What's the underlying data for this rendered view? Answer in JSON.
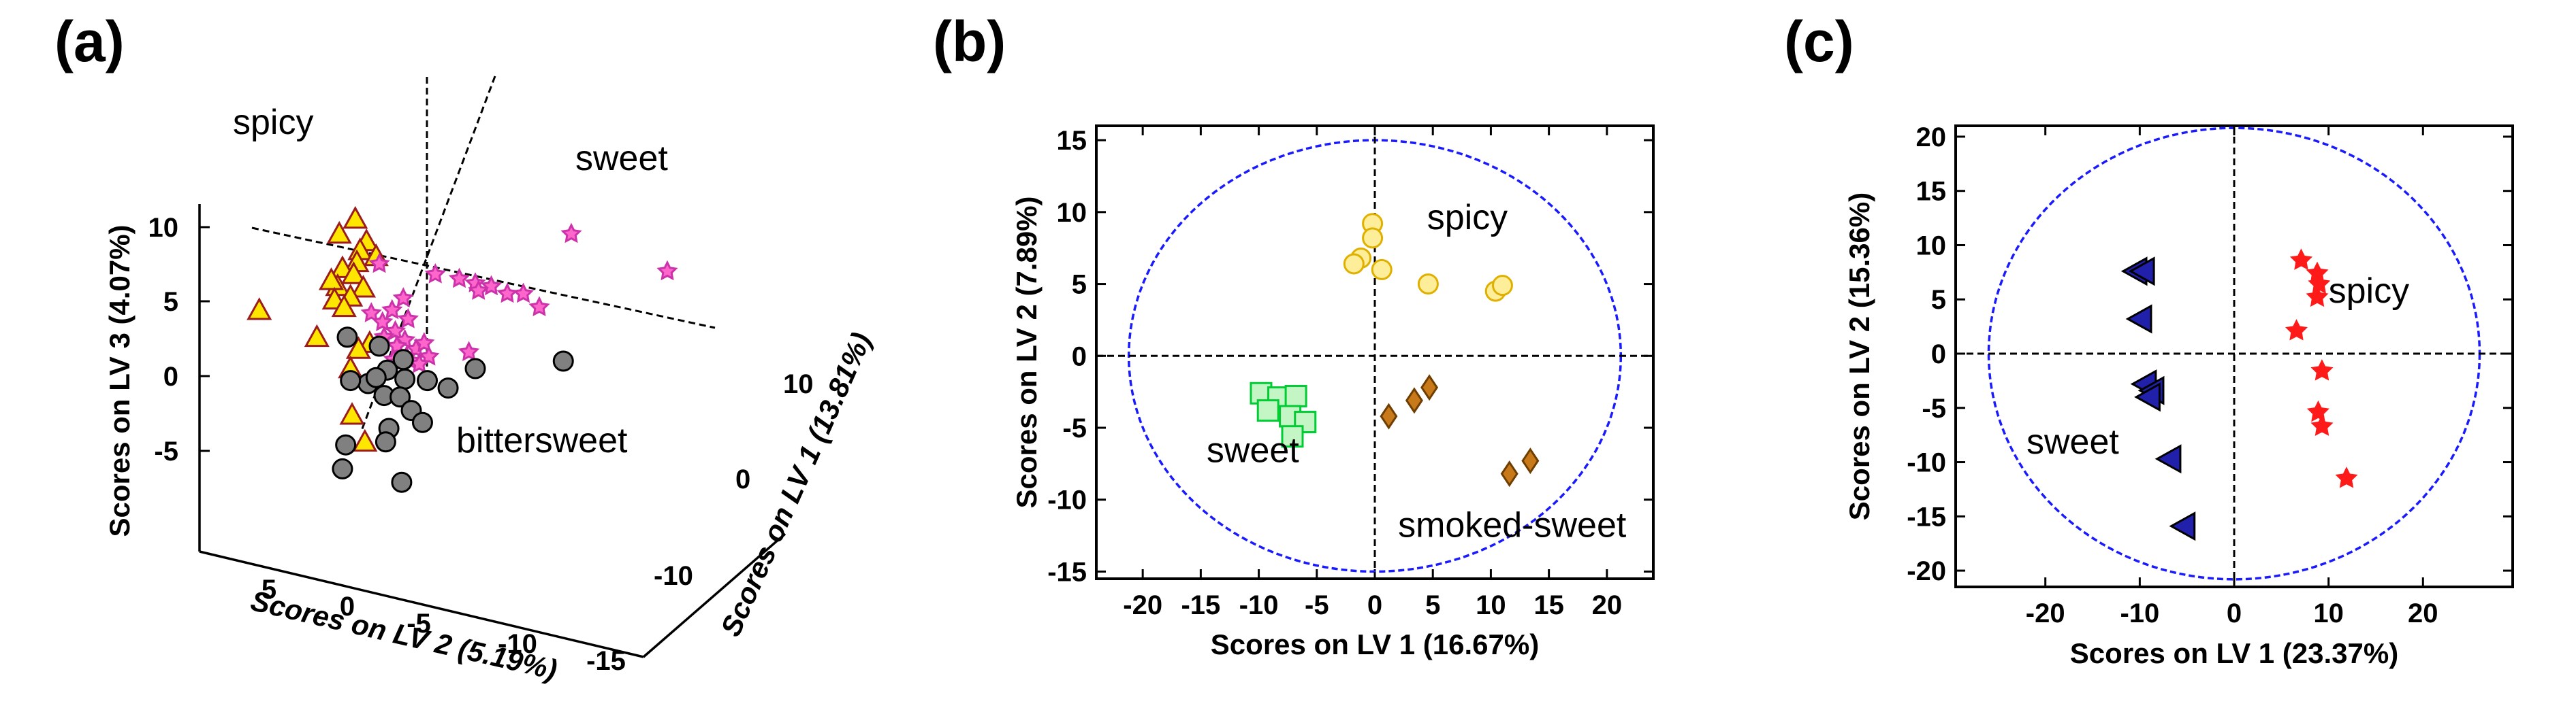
{
  "chart_data": [
    {
      "panel_label": "(a)",
      "type": "scatter",
      "xlabel": "Scores on LV 2 (5.19%)",
      "ylabel": "Scores on LV 3 (4.07%)",
      "zlabel": "Scores on LV 1 (13.81%)",
      "x_ticks": [
        "5",
        "0",
        "-5",
        "-10",
        "-15"
      ],
      "y_ticks": [
        "10",
        "5",
        "0",
        "-5"
      ],
      "z_ticks": [
        "10",
        "0",
        "-10"
      ],
      "annotations": [
        "spicy",
        "sweet",
        "bittersweet"
      ],
      "series": [
        {
          "name": "spicy",
          "marker": "triangle",
          "color": "#ffe600",
          "edge": "#9b1c1c",
          "points": [
            [
              -0.5,
              10.5
            ],
            [
              0.5,
              9.5
            ],
            [
              -1.2,
              9.0
            ],
            [
              -0.8,
              8.4
            ],
            [
              -1.8,
              8.0
            ],
            [
              -0.6,
              7.6
            ],
            [
              0.3,
              7.2
            ],
            [
              -0.4,
              6.8
            ],
            [
              0.6,
              6.0
            ],
            [
              1.0,
              6.4
            ],
            [
              -1.0,
              5.9
            ],
            [
              -0.2,
              5.3
            ],
            [
              0.8,
              5.1
            ],
            [
              0.2,
              4.6
            ],
            [
              5.5,
              4.4
            ],
            [
              1.9,
              2.6
            ],
            [
              -1.4,
              2.2
            ],
            [
              -0.7,
              1.8
            ],
            [
              -0.2,
              0.5
            ],
            [
              -0.3,
              -2.6
            ],
            [
              -1.1,
              -4.4
            ]
          ]
        },
        {
          "name": "sweet",
          "marker": "star",
          "color": "#ff66cc",
          "edge": "#cc33aa",
          "points": [
            [
              -14,
              9.5
            ],
            [
              -20,
              7.0
            ],
            [
              -2,
              7.5
            ],
            [
              -5.5,
              6.8
            ],
            [
              -7,
              6.5
            ],
            [
              -8,
              6.2
            ],
            [
              -9,
              6.0
            ],
            [
              -8.2,
              5.7
            ],
            [
              -10,
              5.5
            ],
            [
              -3.5,
              5.2
            ],
            [
              -11,
              5.5
            ],
            [
              -12,
              4.6
            ],
            [
              -2.8,
              4.4
            ],
            [
              -1.5,
              4.2
            ],
            [
              -2.2,
              3.6
            ],
            [
              -3.8,
              3.8
            ],
            [
              -3,
              3.0
            ],
            [
              -2.3,
              2.6
            ],
            [
              -3.6,
              2.4
            ],
            [
              -3.1,
              2.0
            ],
            [
              -4.3,
              1.8
            ],
            [
              -4.8,
              2.2
            ],
            [
              -5.1,
              1.3
            ],
            [
              -3.7,
              1.3
            ],
            [
              -7.6,
              1.6
            ],
            [
              -4.0,
              1.0
            ],
            [
              -2.9,
              1.1
            ],
            [
              -3.3,
              0.9
            ],
            [
              -4.5,
              0.8
            ]
          ]
        },
        {
          "name": "bittersweet",
          "marker": "circle",
          "color": "#808080",
          "edge": "#000000",
          "points": [
            [
              0,
              2.6
            ],
            [
              -2,
              2.0
            ],
            [
              -3.5,
              1.1
            ],
            [
              -13.5,
              1.0
            ],
            [
              -8,
              0.5
            ],
            [
              -2.5,
              0.4
            ],
            [
              -1.3,
              -0.5
            ],
            [
              -1.8,
              -0.1
            ],
            [
              -0.2,
              -0.3
            ],
            [
              -3.6,
              -0.2
            ],
            [
              -5,
              -0.3
            ],
            [
              -6.3,
              -0.8
            ],
            [
              -2.3,
              -1.3
            ],
            [
              -3.3,
              -1.4
            ],
            [
              -4.0,
              -2.3
            ],
            [
              -2.6,
              -3.5
            ],
            [
              -4.7,
              -3.1
            ],
            [
              -2.4,
              -4.4
            ],
            [
              0.1,
              -4.6
            ],
            [
              0.3,
              -6.2
            ],
            [
              -3.4,
              -7.1
            ]
          ]
        }
      ],
      "grid": false
    },
    {
      "panel_label": "(b)",
      "type": "scatter",
      "xlabel": "Scores on LV 1 (16.67%)",
      "ylabel": "Scores on LV 2 (7.89%)",
      "xlim": [
        -24,
        24
      ],
      "ylim": [
        -15.5,
        16
      ],
      "xticks": [
        -20,
        -15,
        -10,
        -5,
        0,
        5,
        10,
        15,
        20
      ],
      "yticks": [
        15,
        10,
        5,
        0,
        -5,
        -10,
        -15
      ],
      "ellipse": {
        "rx": 21.2,
        "ry": 15.0
      },
      "annotations": [
        {
          "text": "spicy",
          "x": 4.5,
          "y": 8.8
        },
        {
          "text": "sweet",
          "x": -14.5,
          "y": -7.4
        },
        {
          "text": "smoked-sweet",
          "x": 2.0,
          "y": -12.6
        }
      ],
      "series": [
        {
          "name": "spicy",
          "marker": "circle",
          "color": "#ffee99",
          "edge": "#e0b000",
          "points": [
            [
              -0.2,
              9.2
            ],
            [
              -0.2,
              8.2
            ],
            [
              -1.2,
              6.8
            ],
            [
              -1.8,
              6.4
            ],
            [
              0.6,
              6.0
            ],
            [
              4.6,
              5.0
            ],
            [
              10.4,
              4.5
            ],
            [
              11.0,
              4.9
            ]
          ]
        },
        {
          "name": "sweet",
          "marker": "square",
          "color": "#c4f5c4",
          "edge": "#00cc33",
          "points": [
            [
              -9.8,
              -2.6
            ],
            [
              -8.3,
              -2.9
            ],
            [
              -6.8,
              -2.8
            ],
            [
              -9.2,
              -3.8
            ],
            [
              -7.3,
              -4.2
            ],
            [
              -6.0,
              -4.6
            ],
            [
              -7.1,
              -5.6
            ]
          ]
        },
        {
          "name": "smoked-sweet",
          "marker": "diamond",
          "color": "#c87a1a",
          "edge": "#6e3e00",
          "points": [
            [
              1.2,
              -4.2
            ],
            [
              3.4,
              -3.1
            ],
            [
              4.7,
              -2.2
            ],
            [
              11.6,
              -8.2
            ],
            [
              13.4,
              -7.3
            ]
          ]
        }
      ],
      "grid": false
    },
    {
      "panel_label": "(c)",
      "type": "scatter",
      "xlabel": "Scores on LV 1 (23.37%)",
      "ylabel": "Scores on LV 2 (15.36%)",
      "xlim": [
        -29.5,
        29.5
      ],
      "ylim": [
        -21.5,
        21
      ],
      "xticks": [
        -20,
        -10,
        0,
        10,
        20
      ],
      "yticks": [
        20,
        15,
        10,
        5,
        0,
        -5,
        -10,
        -15,
        -20
      ],
      "ellipse": {
        "rx": 26.0,
        "ry": 20.8
      },
      "annotations": [
        {
          "text": "spicy",
          "x": 10.0,
          "y": 4.7
        },
        {
          "text": "sweet",
          "x": -22.0,
          "y": -9.2
        }
      ],
      "series": [
        {
          "name": "sweet",
          "marker": "triangle-left",
          "color": "#2020aa",
          "edge": "#000000",
          "points": [
            [
              -10.4,
              7.6
            ],
            [
              -9.6,
              7.6
            ],
            [
              -9.9,
              3.2
            ],
            [
              -9.4,
              -2.8
            ],
            [
              -8.6,
              -3.4
            ],
            [
              -9.0,
              -4.0
            ],
            [
              -6.8,
              -9.7
            ],
            [
              -5.3,
              -15.9
            ]
          ]
        },
        {
          "name": "spicy",
          "marker": "star",
          "color": "#ff1a1a",
          "edge": "#ff1a1a",
          "points": [
            [
              7.1,
              8.6
            ],
            [
              8.8,
              7.4
            ],
            [
              9.0,
              6.4
            ],
            [
              8.8,
              5.2
            ],
            [
              6.6,
              2.1
            ],
            [
              9.3,
              -1.6
            ],
            [
              8.9,
              -5.4
            ],
            [
              9.3,
              -6.7
            ],
            [
              11.9,
              -11.5
            ]
          ]
        }
      ],
      "grid": false
    }
  ]
}
